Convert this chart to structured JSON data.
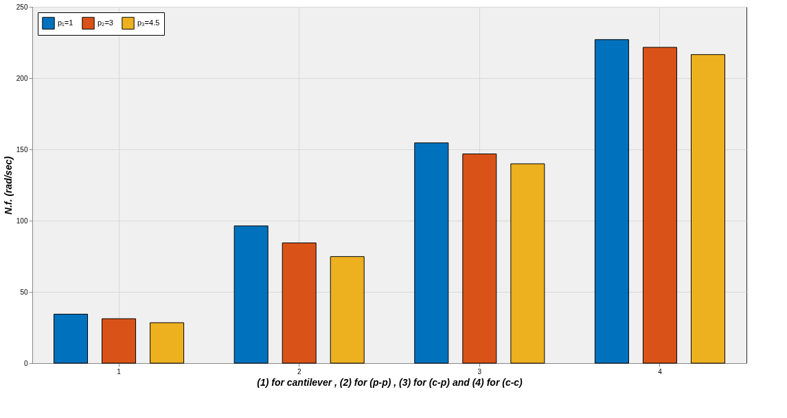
{
  "chart_data": {
    "type": "bar",
    "xlabel": "(1) for cantilever , (2) for (p-p) , (3) for (c-p) and  (4) for (c-c)",
    "ylabel": "N.f. (rad/sec)",
    "categories": [
      "1",
      "2",
      "3",
      "4"
    ],
    "series": [
      {
        "name": "p₁=1",
        "color": "#0072bd",
        "values": [
          34.4,
          96.3,
          154.6,
          227
        ]
      },
      {
        "name": "p₂=3",
        "color": "#d95319",
        "values": [
          31.2,
          84.4,
          146.8,
          221.6
        ]
      },
      {
        "name": "p₃=4.5",
        "color": "#edb120",
        "values": [
          28.4,
          74.8,
          139.9,
          216.5
        ]
      }
    ],
    "ylim": [
      0,
      250
    ],
    "yticks": [
      0,
      50,
      100,
      150,
      200,
      250
    ],
    "grid": true,
    "legend": "top left"
  }
}
